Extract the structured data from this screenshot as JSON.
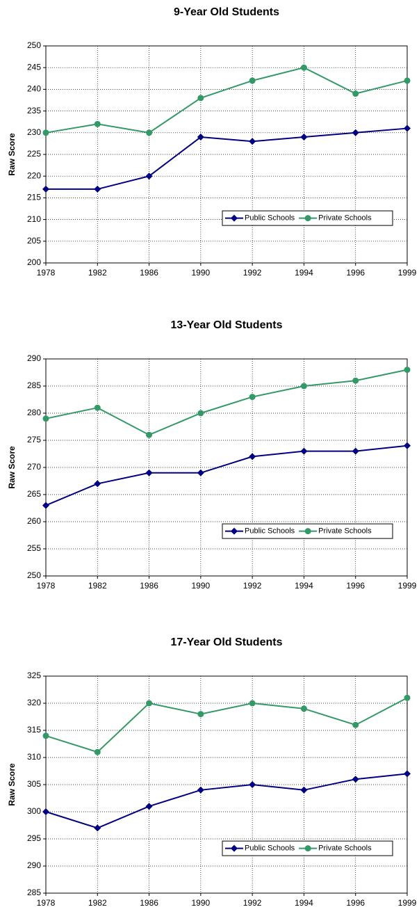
{
  "chart_data": [
    {
      "type": "line",
      "title": "9-Year Old Students",
      "y_label": "Raw Score",
      "categories": [
        "1978",
        "1982",
        "1986",
        "1990",
        "1992",
        "1994",
        "1996",
        "1999"
      ],
      "series": [
        {
          "name": "Public Schools",
          "color": "#000080",
          "marker": "diamond",
          "values": [
            217,
            217,
            220,
            229,
            228,
            229,
            230,
            231
          ]
        },
        {
          "name": "Private Schools",
          "color": "#339966",
          "marker": "circle",
          "values": [
            230,
            232,
            230,
            238,
            242,
            245,
            239,
            242
          ]
        }
      ],
      "ylim": [
        200,
        250
      ],
      "yticks": [
        200,
        205,
        210,
        215,
        220,
        225,
        230,
        235,
        240,
        245,
        250
      ],
      "grid": true,
      "legend": "lower right"
    },
    {
      "type": "line",
      "title": "13-Year Old Students",
      "y_label": "Raw Score",
      "categories": [
        "1978",
        "1982",
        "1986",
        "1990",
        "1992",
        "1994",
        "1996",
        "1999"
      ],
      "series": [
        {
          "name": "Public Schools",
          "color": "#000080",
          "marker": "diamond",
          "values": [
            263,
            267,
            269,
            269,
            272,
            273,
            273,
            274
          ]
        },
        {
          "name": "Private Schools",
          "color": "#339966",
          "marker": "circle",
          "values": [
            279,
            281,
            276,
            280,
            283,
            285,
            286,
            288
          ]
        }
      ],
      "ylim": [
        250,
        290
      ],
      "yticks": [
        250,
        255,
        260,
        265,
        270,
        275,
        280,
        285,
        290
      ],
      "grid": true,
      "legend": "lower right"
    },
    {
      "type": "line",
      "title": "17-Year Old Students",
      "y_label": "Raw Score",
      "categories": [
        "1978",
        "1982",
        "1986",
        "1990",
        "1992",
        "1994",
        "1996",
        "1999"
      ],
      "series": [
        {
          "name": "Public Schools",
          "color": "#000080",
          "marker": "diamond",
          "values": [
            300,
            297,
            301,
            304,
            305,
            304,
            306,
            307
          ]
        },
        {
          "name": "Private Schools",
          "color": "#339966",
          "marker": "circle",
          "values": [
            314,
            311,
            320,
            318,
            320,
            319,
            316,
            321
          ]
        }
      ],
      "ylim": [
        285,
        325
      ],
      "yticks": [
        285,
        290,
        295,
        300,
        305,
        310,
        315,
        320,
        325
      ],
      "grid": true,
      "legend": "lower right"
    }
  ]
}
